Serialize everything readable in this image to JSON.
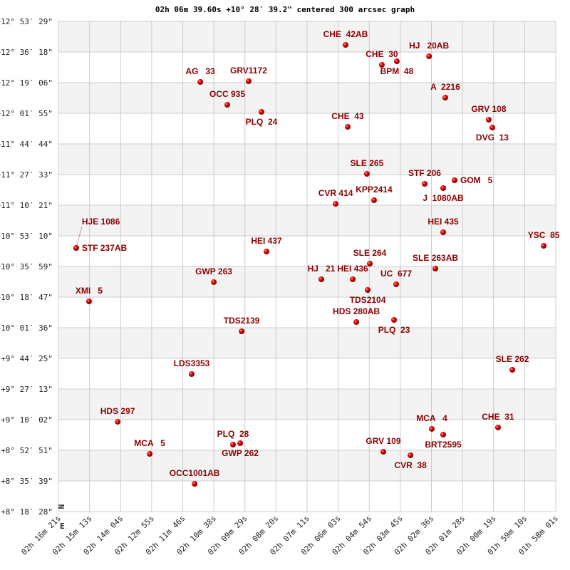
{
  "chart_data": {
    "type": "scatter",
    "title": "02h 06m 39.60s +10° 28′ 39.2\" centered 300 arcsec graph",
    "x_axis": {
      "quantity": "right ascension (hours)",
      "range": [
        2.2725,
        1.9668
      ],
      "reversed": true,
      "tick_labels": [
        "02h 16m 21s",
        "02h 15m 13s",
        "02h 14m 04s",
        "02h 12m 55s",
        "02h 11m 46s",
        "02h 10m 38s",
        "02h 09m 29s",
        "02h 08m 20s",
        "02h 07m 11s",
        "02h 06m 03s",
        "02h 04m 54s",
        "02h 03m 45s",
        "02h 02m 36s",
        "02h 01m 28s",
        "02h 00m 19s",
        "01h 59m 10s",
        "01h 58m 01s"
      ]
    },
    "y_axis": {
      "quantity": "declination (degrees)",
      "range": [
        8.3081,
        12.8914
      ],
      "tick_labels": [
        "+12° 53′ 29\"",
        "+12° 36′ 18\"",
        "+12° 19′ 06\"",
        "+12° 01′ 55\"",
        "+11° 44′ 44\"",
        "+11° 27′ 33\"",
        "+11° 10′ 21\"",
        "+10° 53′ 10\"",
        "+10° 35′ 59\"",
        "+10° 18′ 47\"",
        "+10° 01′ 36\"",
        "+9° 44′ 25\"",
        "+9° 27′ 13\"",
        "+9° 10′ 02\"",
        "+8° 52′ 51\"",
        "+8° 35′ 39\"",
        "+8° 18′ 28\""
      ]
    },
    "grid": true,
    "alternating_bands": true,
    "compass": {
      "north": "N",
      "east": "E"
    },
    "colors": {
      "point": "#dd0000",
      "label": "#8b0000",
      "band": "#f3f3f3",
      "grid": "#cccccc"
    },
    "points": [
      {
        "name": "CHE  42AB",
        "ra": 2.096,
        "dec": 12.6716
      },
      {
        "name": "CHE  30",
        "ra": 2.0737,
        "dec": 12.485
      },
      {
        "name": "BPM  48",
        "ra": 2.0645,
        "dec": 12.5184
      },
      {
        "name": "HJ   20AB",
        "ra": 2.0447,
        "dec": 12.565
      },
      {
        "name": "AG   33",
        "ra": 2.1853,
        "dec": 12.3252
      },
      {
        "name": "GRV1172",
        "ra": 2.1556,
        "dec": 12.3318
      },
      {
        "name": "OCC 935",
        "ra": 2.1687,
        "dec": 12.112
      },
      {
        "name": "PLQ  24",
        "ra": 2.1477,
        "dec": 12.0454
      },
      {
        "name": "A  2216",
        "ra": 2.0347,
        "dec": 12.1786
      },
      {
        "name": "CHE  43",
        "ra": 2.0947,
        "dec": 11.9055
      },
      {
        "name": "GRV 108",
        "ra": 2.008,
        "dec": 11.9721
      },
      {
        "name": "DVG  13",
        "ra": 2.0058,
        "dec": 11.8988
      },
      {
        "name": "SLE 265",
        "ra": 2.0829,
        "dec": 11.4658
      },
      {
        "name": "STF 206",
        "ra": 2.0474,
        "dec": 11.3726
      },
      {
        "name": "J  1080AB",
        "ra": 2.036,
        "dec": 11.3326
      },
      {
        "name": "GOM   5",
        "ra": 2.029,
        "dec": 11.4059
      },
      {
        "name": "CVR 414",
        "ra": 2.1021,
        "dec": 11.186
      },
      {
        "name": "KPP2414",
        "ra": 2.0785,
        "dec": 11.2193
      },
      {
        "name": "HEI 435",
        "ra": 2.036,
        "dec": 10.9196
      },
      {
        "name": "YSC  85",
        "ra": 1.9742,
        "dec": 10.793
      },
      {
        "name": "STF 237AB",
        "ra": 2.2616,
        "dec": 10.773
      },
      {
        "name": "HJE 1086",
        "ra": 2.2616,
        "dec": 10.773
      },
      {
        "name": "HEI 437",
        "ra": 2.1446,
        "dec": 10.7397
      },
      {
        "name": "SLE 264",
        "ra": 2.0811,
        "dec": 10.6265
      },
      {
        "name": "SLE 263AB",
        "ra": 2.0408,
        "dec": 10.5798
      },
      {
        "name": "HJ   21",
        "ra": 2.1109,
        "dec": 10.4799
      },
      {
        "name": "HEI 436",
        "ra": 2.0916,
        "dec": 10.4799
      },
      {
        "name": "TDS2104",
        "ra": 2.0824,
        "dec": 10.38
      },
      {
        "name": "UC  677",
        "ra": 2.0649,
        "dec": 10.4333
      },
      {
        "name": "GWP 263",
        "ra": 2.177,
        "dec": 10.4533
      },
      {
        "name": "XMI   5",
        "ra": 2.2537,
        "dec": 10.2734
      },
      {
        "name": "HDS 280AB",
        "ra": 2.0894,
        "dec": 10.0802
      },
      {
        "name": "PLQ  23",
        "ra": 2.0662,
        "dec": 10.1002
      },
      {
        "name": "TDS2139",
        "ra": 2.1599,
        "dec": 9.9936
      },
      {
        "name": "LDS3353",
        "ra": 2.1906,
        "dec": 9.5939
      },
      {
        "name": "SLE 262",
        "ra": 1.9935,
        "dec": 9.6339
      },
      {
        "name": "HDS 297",
        "ra": 2.2361,
        "dec": 9.1476
      },
      {
        "name": "MCA   4",
        "ra": 2.043,
        "dec": 9.081
      },
      {
        "name": "BRT2595",
        "ra": 2.036,
        "dec": 9.0277
      },
      {
        "name": "CHE  31",
        "ra": 2.0023,
        "dec": 9.0943
      },
      {
        "name": "PLQ  28",
        "ra": 2.1652,
        "dec": 8.9344
      },
      {
        "name": "GWP 262",
        "ra": 2.1608,
        "dec": 8.9477
      },
      {
        "name": "MCA   5",
        "ra": 2.2164,
        "dec": 8.8478
      },
      {
        "name": "GRV 109",
        "ra": 2.0728,
        "dec": 8.8678
      },
      {
        "name": "CVR  38",
        "ra": 2.0561,
        "dec": 8.8345
      },
      {
        "name": "OCC1001AB",
        "ra": 2.1888,
        "dec": 8.568
      }
    ]
  }
}
